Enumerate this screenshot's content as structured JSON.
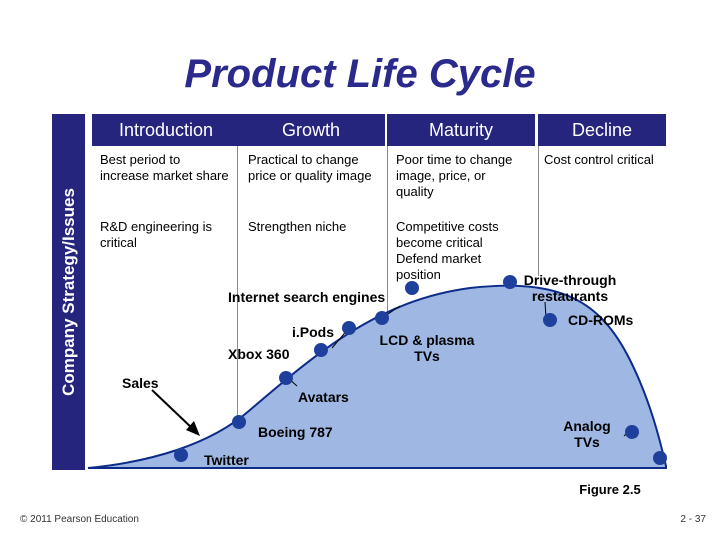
{
  "title": "Product Life Cycle",
  "side_label": "Company Strategy/Issues",
  "stages": [
    {
      "label": "Introduction"
    },
    {
      "label": "Growth"
    },
    {
      "label": "Maturity"
    },
    {
      "label": "Decline"
    }
  ],
  "strategies": {
    "intro_1": "Best period to increase market share",
    "intro_2": "R&D engineering is critical",
    "growth_1": "Practical to change price or quality image",
    "growth_2": "Strengthen niche",
    "maturity_1": "Poor time to change image, price, or quality",
    "maturity_2": "Competitive costs become critical Defend market position",
    "decline_1": "Cost control critical"
  },
  "curve_label": "Sales",
  "products": {
    "twitter": "Twitter",
    "boeing": "Boeing 787",
    "avatars": "Avatars",
    "ipods": "i.Pods",
    "xbox": "Xbox 360",
    "internet": "Internet search engines",
    "lcd": "LCD & plasma TVs",
    "drive_through": "Drive-through restaurants",
    "cdroms": "CD-ROMs",
    "analog": "Analog TVs"
  },
  "colors": {
    "header_bg": "#25257d",
    "title": "#2a2a8c",
    "curve_fill": "#9fb7e3",
    "curve_stroke": "#0d2c8a",
    "marker": "#1f3f9c"
  },
  "figure_label": "Figure 2.5",
  "footer_left": "© 2011 Pearson Education",
  "footer_right": "2 - 37"
}
